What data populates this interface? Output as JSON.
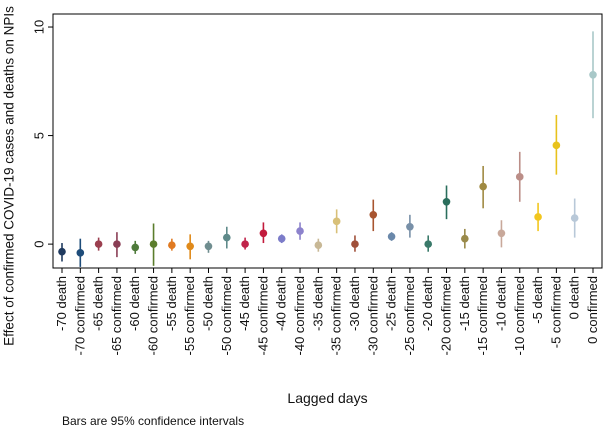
{
  "chart_data": {
    "type": "scatter",
    "ylabel": "Effect of confirmed COVID-19 cases and deaths on NPIs",
    "xlabel": "Lagged days",
    "note": "Bars are 95% confidence intervals",
    "ylim": [
      -1.1,
      10.6
    ],
    "yticks": [
      0,
      5,
      10
    ],
    "grid": false,
    "points": [
      {
        "label": "-70 death",
        "value": -0.35,
        "lo": -0.8,
        "hi": 0.05,
        "color": "#1f3a5f"
      },
      {
        "label": "-70 confirmed",
        "value": -0.4,
        "lo": -1.05,
        "hi": 0.25,
        "color": "#1e4c7a"
      },
      {
        "label": "-65 death",
        "value": 0.0,
        "lo": -0.3,
        "hi": 0.3,
        "color": "#9b3f4f"
      },
      {
        "label": "-65 confirmed",
        "value": 0.0,
        "lo": -0.6,
        "hi": 0.55,
        "color": "#8a3e55"
      },
      {
        "label": "-60 death",
        "value": -0.15,
        "lo": -0.45,
        "hi": 0.15,
        "color": "#4e7a3a"
      },
      {
        "label": "-60 confirmed",
        "value": 0.0,
        "lo": -1.0,
        "hi": 0.95,
        "color": "#5b7d2c"
      },
      {
        "label": "-55 death",
        "value": -0.05,
        "lo": -0.3,
        "hi": 0.25,
        "color": "#e07a22"
      },
      {
        "label": "-55 confirmed",
        "value": -0.1,
        "lo": -0.7,
        "hi": 0.45,
        "color": "#e08a1a"
      },
      {
        "label": "-50 death",
        "value": -0.1,
        "lo": -0.4,
        "hi": 0.15,
        "color": "#6f8d8f"
      },
      {
        "label": "-50 confirmed",
        "value": 0.3,
        "lo": -0.2,
        "hi": 0.8,
        "color": "#5f8a8a"
      },
      {
        "label": "-45 death",
        "value": 0.0,
        "lo": -0.25,
        "hi": 0.3,
        "color": "#c0244a"
      },
      {
        "label": "-45 confirmed",
        "value": 0.5,
        "lo": 0.05,
        "hi": 1.0,
        "color": "#c21a3c"
      },
      {
        "label": "-40 death",
        "value": 0.25,
        "lo": 0.05,
        "hi": 0.45,
        "color": "#7c7cc9"
      },
      {
        "label": "-40 confirmed",
        "value": 0.6,
        "lo": 0.2,
        "hi": 1.0,
        "color": "#8c82cc"
      },
      {
        "label": "-35 death",
        "value": -0.05,
        "lo": -0.35,
        "hi": 0.25,
        "color": "#c8b896"
      },
      {
        "label": "-35 confirmed",
        "value": 1.05,
        "lo": 0.5,
        "hi": 1.6,
        "color": "#d8c078"
      },
      {
        "label": "-30 death",
        "value": 0.0,
        "lo": -0.35,
        "hi": 0.4,
        "color": "#a0503a"
      },
      {
        "label": "-30 confirmed",
        "value": 1.35,
        "lo": 0.6,
        "hi": 2.05,
        "color": "#a85530"
      },
      {
        "label": "-25 death",
        "value": 0.35,
        "lo": 0.15,
        "hi": 0.55,
        "color": "#6a88aa"
      },
      {
        "label": "-25 confirmed",
        "value": 0.8,
        "lo": 0.3,
        "hi": 1.35,
        "color": "#7890a8"
      },
      {
        "label": "-20 death",
        "value": 0.0,
        "lo": -0.35,
        "hi": 0.4,
        "color": "#3a7a6a"
      },
      {
        "label": "-20 confirmed",
        "value": 1.95,
        "lo": 1.15,
        "hi": 2.7,
        "color": "#2a6e5c"
      },
      {
        "label": "-15 death",
        "value": 0.25,
        "lo": -0.2,
        "hi": 0.7,
        "color": "#9a8a4a"
      },
      {
        "label": "-15 confirmed",
        "value": 2.65,
        "lo": 1.65,
        "hi": 3.6,
        "color": "#a08a42"
      },
      {
        "label": "-10 death",
        "value": 0.5,
        "lo": -0.15,
        "hi": 1.1,
        "color": "#c8a89a"
      },
      {
        "label": "-10 confirmed",
        "value": 3.1,
        "lo": 1.95,
        "hi": 4.25,
        "color": "#bb8e88"
      },
      {
        "label": "-5 death",
        "value": 1.25,
        "lo": 0.6,
        "hi": 1.9,
        "color": "#f2c61e"
      },
      {
        "label": "-5 confirmed",
        "value": 4.55,
        "lo": 3.2,
        "hi": 5.95,
        "color": "#e8c21c"
      },
      {
        "label": "0 death",
        "value": 1.2,
        "lo": 0.3,
        "hi": 2.1,
        "color": "#b8c8d8"
      },
      {
        "label": "0 confirmed",
        "value": 7.8,
        "lo": 5.8,
        "hi": 9.8,
        "color": "#a8c8c8"
      }
    ]
  }
}
